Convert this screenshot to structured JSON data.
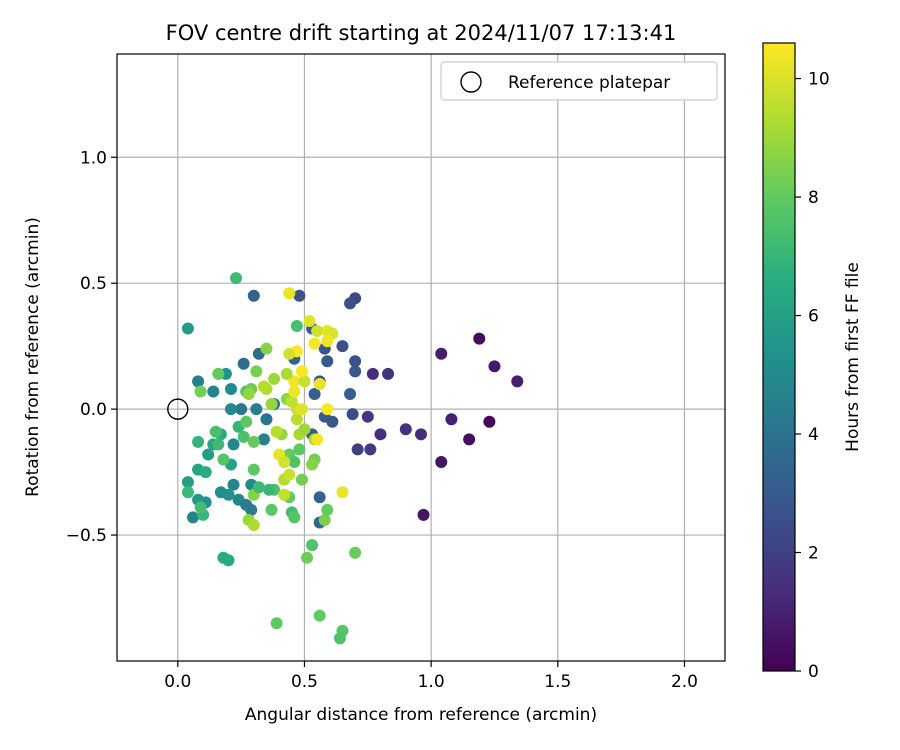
{
  "chart_data": {
    "type": "scatter",
    "title": "FOV centre drift starting at 2024/11/07 17:13:41",
    "xlabel": "Angular distance from reference (arcmin)",
    "ylabel": "Rotation from reference (arcmin)",
    "xlim": [
      -0.24,
      2.16
    ],
    "ylim": [
      -1.0,
      1.41
    ],
    "xticks": [
      0.0,
      0.5,
      1.0,
      1.5,
      2.0
    ],
    "xtick_labels": [
      "0.0",
      "0.5",
      "1.0",
      "1.5",
      "2.0"
    ],
    "yticks": [
      -0.5,
      0.0,
      0.5,
      1.0
    ],
    "ytick_labels": [
      "−0.5",
      "0.0",
      "0.5",
      "1.0"
    ],
    "grid": true,
    "legend": {
      "position": "top-right",
      "entries": [
        {
          "label": "Reference platepar",
          "marker": "open-circle"
        }
      ]
    },
    "reference_point": {
      "x": 0.0,
      "y": 0.0
    },
    "colorbar": {
      "label": "Hours from first FF file",
      "colormap": "viridis",
      "range": [
        0,
        10.6
      ],
      "ticks": [
        0,
        2,
        4,
        6,
        8,
        10
      ],
      "tick_labels": [
        "0",
        "2",
        "4",
        "6",
        "8",
        "10"
      ]
    },
    "points": [
      {
        "x": 1.19,
        "y": 0.28,
        "c": 0.3
      },
      {
        "x": 1.04,
        "y": 0.22,
        "c": 0.8
      },
      {
        "x": 1.25,
        "y": 0.17,
        "c": 0.7
      },
      {
        "x": 1.34,
        "y": 0.11,
        "c": 0.9
      },
      {
        "x": 1.08,
        "y": -0.04,
        "c": 0.9
      },
      {
        "x": 1.23,
        "y": -0.05,
        "c": 0.2
      },
      {
        "x": 1.15,
        "y": -0.12,
        "c": 0.4
      },
      {
        "x": 1.04,
        "y": -0.21,
        "c": 0.6
      },
      {
        "x": 0.97,
        "y": -0.42,
        "c": 0.6
      },
      {
        "x": 0.96,
        "y": -0.1,
        "c": 1.3
      },
      {
        "x": 0.9,
        "y": -0.08,
        "c": 1.5
      },
      {
        "x": 0.8,
        "y": -0.1,
        "c": 1.4
      },
      {
        "x": 0.77,
        "y": 0.14,
        "c": 1.3
      },
      {
        "x": 0.83,
        "y": 0.14,
        "c": 1.5
      },
      {
        "x": 0.75,
        "y": -0.03,
        "c": 1.7
      },
      {
        "x": 0.76,
        "y": -0.16,
        "c": 1.9
      },
      {
        "x": 0.71,
        "y": -0.16,
        "c": 2.0
      },
      {
        "x": 0.7,
        "y": 0.44,
        "c": 2.3
      },
      {
        "x": 0.68,
        "y": 0.42,
        "c": 2.6
      },
      {
        "x": 0.7,
        "y": 0.19,
        "c": 2.7
      },
      {
        "x": 0.7,
        "y": 0.15,
        "c": 2.9
      },
      {
        "x": 0.68,
        "y": 0.06,
        "c": 3.2
      },
      {
        "x": 0.69,
        "y": -0.02,
        "c": 2.4
      },
      {
        "x": 0.65,
        "y": 0.25,
        "c": 2.5
      },
      {
        "x": 0.48,
        "y": 0.45,
        "c": 2.6
      },
      {
        "x": 0.3,
        "y": 0.45,
        "c": 3.3
      },
      {
        "x": 0.53,
        "y": 0.32,
        "c": 3.1
      },
      {
        "x": 0.58,
        "y": 0.24,
        "c": 2.8
      },
      {
        "x": 0.59,
        "y": 0.19,
        "c": 3.0
      },
      {
        "x": 0.56,
        "y": 0.11,
        "c": 2.7
      },
      {
        "x": 0.54,
        "y": 0.06,
        "c": 3.2
      },
      {
        "x": 0.58,
        "y": -0.03,
        "c": 3.0
      },
      {
        "x": 0.61,
        "y": -0.05,
        "c": 2.8
      },
      {
        "x": 0.53,
        "y": -0.1,
        "c": 3.1
      },
      {
        "x": 0.56,
        "y": -0.35,
        "c": 3.3
      },
      {
        "x": 0.56,
        "y": -0.45,
        "c": 3.5
      },
      {
        "x": 0.46,
        "y": 0.2,
        "c": 3.4
      },
      {
        "x": 0.32,
        "y": 0.22,
        "c": 3.6
      },
      {
        "x": 0.26,
        "y": 0.18,
        "c": 3.8
      },
      {
        "x": 0.38,
        "y": 0.02,
        "c": 4.2
      },
      {
        "x": 0.35,
        "y": -0.04,
        "c": 4.0
      },
      {
        "x": 0.31,
        "y": 0.0,
        "c": 4.5
      },
      {
        "x": 0.34,
        "y": -0.12,
        "c": 4.6
      },
      {
        "x": 0.25,
        "y": 0.0,
        "c": 4.2
      },
      {
        "x": 0.22,
        "y": -0.14,
        "c": 5.0
      },
      {
        "x": 0.22,
        "y": -0.3,
        "c": 4.8
      },
      {
        "x": 0.24,
        "y": -0.36,
        "c": 4.9
      },
      {
        "x": 0.27,
        "y": -0.38,
        "c": 4.4
      },
      {
        "x": 0.29,
        "y": -0.4,
        "c": 4.3
      },
      {
        "x": 0.29,
        "y": -0.3,
        "c": 5.0
      },
      {
        "x": 0.2,
        "y": -0.34,
        "c": 5.3
      },
      {
        "x": 0.17,
        "y": -0.33,
        "c": 5.2
      },
      {
        "x": 0.06,
        "y": -0.43,
        "c": 4.8
      },
      {
        "x": 0.08,
        "y": 0.11,
        "c": 4.5
      },
      {
        "x": 0.14,
        "y": 0.07,
        "c": 4.7
      },
      {
        "x": 0.21,
        "y": 0.08,
        "c": 5.0
      },
      {
        "x": 0.21,
        "y": 0.0,
        "c": 4.9
      },
      {
        "x": 0.19,
        "y": 0.14,
        "c": 5.4
      },
      {
        "x": 0.04,
        "y": 0.32,
        "c": 5.8
      },
      {
        "x": 0.23,
        "y": 0.52,
        "c": 7.2
      },
      {
        "x": 0.08,
        "y": -0.36,
        "c": 5.6
      },
      {
        "x": 0.11,
        "y": -0.37,
        "c": 5.4
      },
      {
        "x": 0.04,
        "y": -0.29,
        "c": 5.9
      },
      {
        "x": 0.08,
        "y": -0.24,
        "c": 6.2
      },
      {
        "x": 0.11,
        "y": -0.25,
        "c": 6.6
      },
      {
        "x": 0.12,
        "y": -0.18,
        "c": 5.9
      },
      {
        "x": 0.14,
        "y": -0.14,
        "c": 6.3
      },
      {
        "x": 0.17,
        "y": -0.1,
        "c": 6.5
      },
      {
        "x": 0.21,
        "y": -0.22,
        "c": 6.1
      },
      {
        "x": 0.2,
        "y": -0.6,
        "c": 6.4
      },
      {
        "x": 0.18,
        "y": -0.59,
        "c": 6.6
      },
      {
        "x": 0.1,
        "y": -0.42,
        "c": 7.0
      },
      {
        "x": 0.09,
        "y": -0.39,
        "c": 7.3
      },
      {
        "x": 0.04,
        "y": -0.33,
        "c": 7.1
      },
      {
        "x": 0.08,
        "y": -0.13,
        "c": 6.9
      },
      {
        "x": 0.15,
        "y": -0.09,
        "c": 7.4
      },
      {
        "x": 0.16,
        "y": -0.14,
        "c": 7.2
      },
      {
        "x": 0.18,
        "y": -0.2,
        "c": 7.7
      },
      {
        "x": 0.24,
        "y": -0.07,
        "c": 7.0
      },
      {
        "x": 0.26,
        "y": -0.11,
        "c": 7.5
      },
      {
        "x": 0.27,
        "y": -0.05,
        "c": 7.9
      },
      {
        "x": 0.3,
        "y": -0.13,
        "c": 8.1
      },
      {
        "x": 0.27,
        "y": 0.07,
        "c": 7.6
      },
      {
        "x": 0.29,
        "y": 0.08,
        "c": 8.2
      },
      {
        "x": 0.31,
        "y": 0.15,
        "c": 8.4
      },
      {
        "x": 0.35,
        "y": 0.24,
        "c": 8.6
      },
      {
        "x": 0.16,
        "y": 0.14,
        "c": 8.0
      },
      {
        "x": 0.09,
        "y": 0.07,
        "c": 8.3
      },
      {
        "x": 0.47,
        "y": 0.33,
        "c": 7.4
      },
      {
        "x": 0.43,
        "y": 0.04,
        "c": 8.7
      },
      {
        "x": 0.41,
        "y": -0.1,
        "c": 8.9
      },
      {
        "x": 0.44,
        "y": -0.18,
        "c": 8.1
      },
      {
        "x": 0.46,
        "y": -0.21,
        "c": 7.6
      },
      {
        "x": 0.48,
        "y": -0.16,
        "c": 7.9
      },
      {
        "x": 0.49,
        "y": -0.28,
        "c": 8.3
      },
      {
        "x": 0.44,
        "y": -0.35,
        "c": 8.0
      },
      {
        "x": 0.45,
        "y": -0.41,
        "c": 7.3
      },
      {
        "x": 0.46,
        "y": -0.43,
        "c": 7.7
      },
      {
        "x": 0.38,
        "y": -0.32,
        "c": 7.5
      },
      {
        "x": 0.36,
        "y": -0.32,
        "c": 7.0
      },
      {
        "x": 0.37,
        "y": -0.4,
        "c": 7.8
      },
      {
        "x": 0.3,
        "y": -0.24,
        "c": 7.9
      },
      {
        "x": 0.3,
        "y": -0.34,
        "c": 8.6
      },
      {
        "x": 0.28,
        "y": -0.44,
        "c": 8.9
      },
      {
        "x": 0.3,
        "y": -0.46,
        "c": 9.3
      },
      {
        "x": 0.32,
        "y": -0.31,
        "c": 7.2
      },
      {
        "x": 0.39,
        "y": -0.85,
        "c": 7.9
      },
      {
        "x": 0.56,
        "y": -0.82,
        "c": 8.0
      },
      {
        "x": 0.65,
        "y": -0.88,
        "c": 7.8
      },
      {
        "x": 0.64,
        "y": -0.91,
        "c": 7.6
      },
      {
        "x": 0.51,
        "y": -0.59,
        "c": 8.2
      },
      {
        "x": 0.53,
        "y": -0.54,
        "c": 7.6
      },
      {
        "x": 0.58,
        "y": -0.44,
        "c": 8.4
      },
      {
        "x": 0.59,
        "y": -0.4,
        "c": 8.0
      },
      {
        "x": 0.7,
        "y": -0.57,
        "c": 8.1
      },
      {
        "x": 0.54,
        "y": -0.2,
        "c": 8.3
      },
      {
        "x": 0.53,
        "y": -0.22,
        "c": 8.6
      },
      {
        "x": 0.54,
        "y": -0.12,
        "c": 9.1
      },
      {
        "x": 0.48,
        "y": -0.1,
        "c": 9.2
      },
      {
        "x": 0.47,
        "y": -0.04,
        "c": 9.5
      },
      {
        "x": 0.5,
        "y": -0.08,
        "c": 9.0
      },
      {
        "x": 0.47,
        "y": 0.0,
        "c": 9.8
      },
      {
        "x": 0.49,
        "y": 0.0,
        "c": 10.1
      },
      {
        "x": 0.45,
        "y": 0.03,
        "c": 9.6
      },
      {
        "x": 0.46,
        "y": 0.07,
        "c": 10.3
      },
      {
        "x": 0.46,
        "y": 0.11,
        "c": 10.4
      },
      {
        "x": 0.5,
        "y": 0.11,
        "c": 9.7
      },
      {
        "x": 0.49,
        "y": 0.15,
        "c": 10.5
      },
      {
        "x": 0.43,
        "y": 0.14,
        "c": 9.2
      },
      {
        "x": 0.38,
        "y": 0.12,
        "c": 9.0
      },
      {
        "x": 0.35,
        "y": 0.08,
        "c": 9.3
      },
      {
        "x": 0.37,
        "y": 0.02,
        "c": 8.9
      },
      {
        "x": 0.39,
        "y": -0.09,
        "c": 9.5
      },
      {
        "x": 0.4,
        "y": -0.18,
        "c": 10.2
      },
      {
        "x": 0.42,
        "y": -0.21,
        "c": 9.9
      },
      {
        "x": 0.42,
        "y": -0.28,
        "c": 9.4
      },
      {
        "x": 0.44,
        "y": -0.26,
        "c": 9.7
      },
      {
        "x": 0.42,
        "y": -0.34,
        "c": 9.6
      },
      {
        "x": 0.44,
        "y": 0.46,
        "c": 10.3
      },
      {
        "x": 0.52,
        "y": 0.35,
        "c": 10.1
      },
      {
        "x": 0.55,
        "y": 0.31,
        "c": 9.8
      },
      {
        "x": 0.59,
        "y": 0.31,
        "c": 10.2
      },
      {
        "x": 0.61,
        "y": 0.3,
        "c": 10.0
      },
      {
        "x": 0.59,
        "y": 0.27,
        "c": 10.4
      },
      {
        "x": 0.54,
        "y": 0.26,
        "c": 10.5
      },
      {
        "x": 0.47,
        "y": 0.23,
        "c": 10.6
      },
      {
        "x": 0.44,
        "y": 0.22,
        "c": 9.9
      },
      {
        "x": 0.56,
        "y": 0.1,
        "c": 10.2
      },
      {
        "x": 0.59,
        "y": 0.0,
        "c": 10.6
      },
      {
        "x": 0.55,
        "y": -0.12,
        "c": 10.4
      },
      {
        "x": 0.65,
        "y": -0.33,
        "c": 10.3
      },
      {
        "x": 0.34,
        "y": 0.09,
        "c": 9.4
      },
      {
        "x": 0.28,
        "y": 0.06,
        "c": 8.8
      }
    ]
  }
}
